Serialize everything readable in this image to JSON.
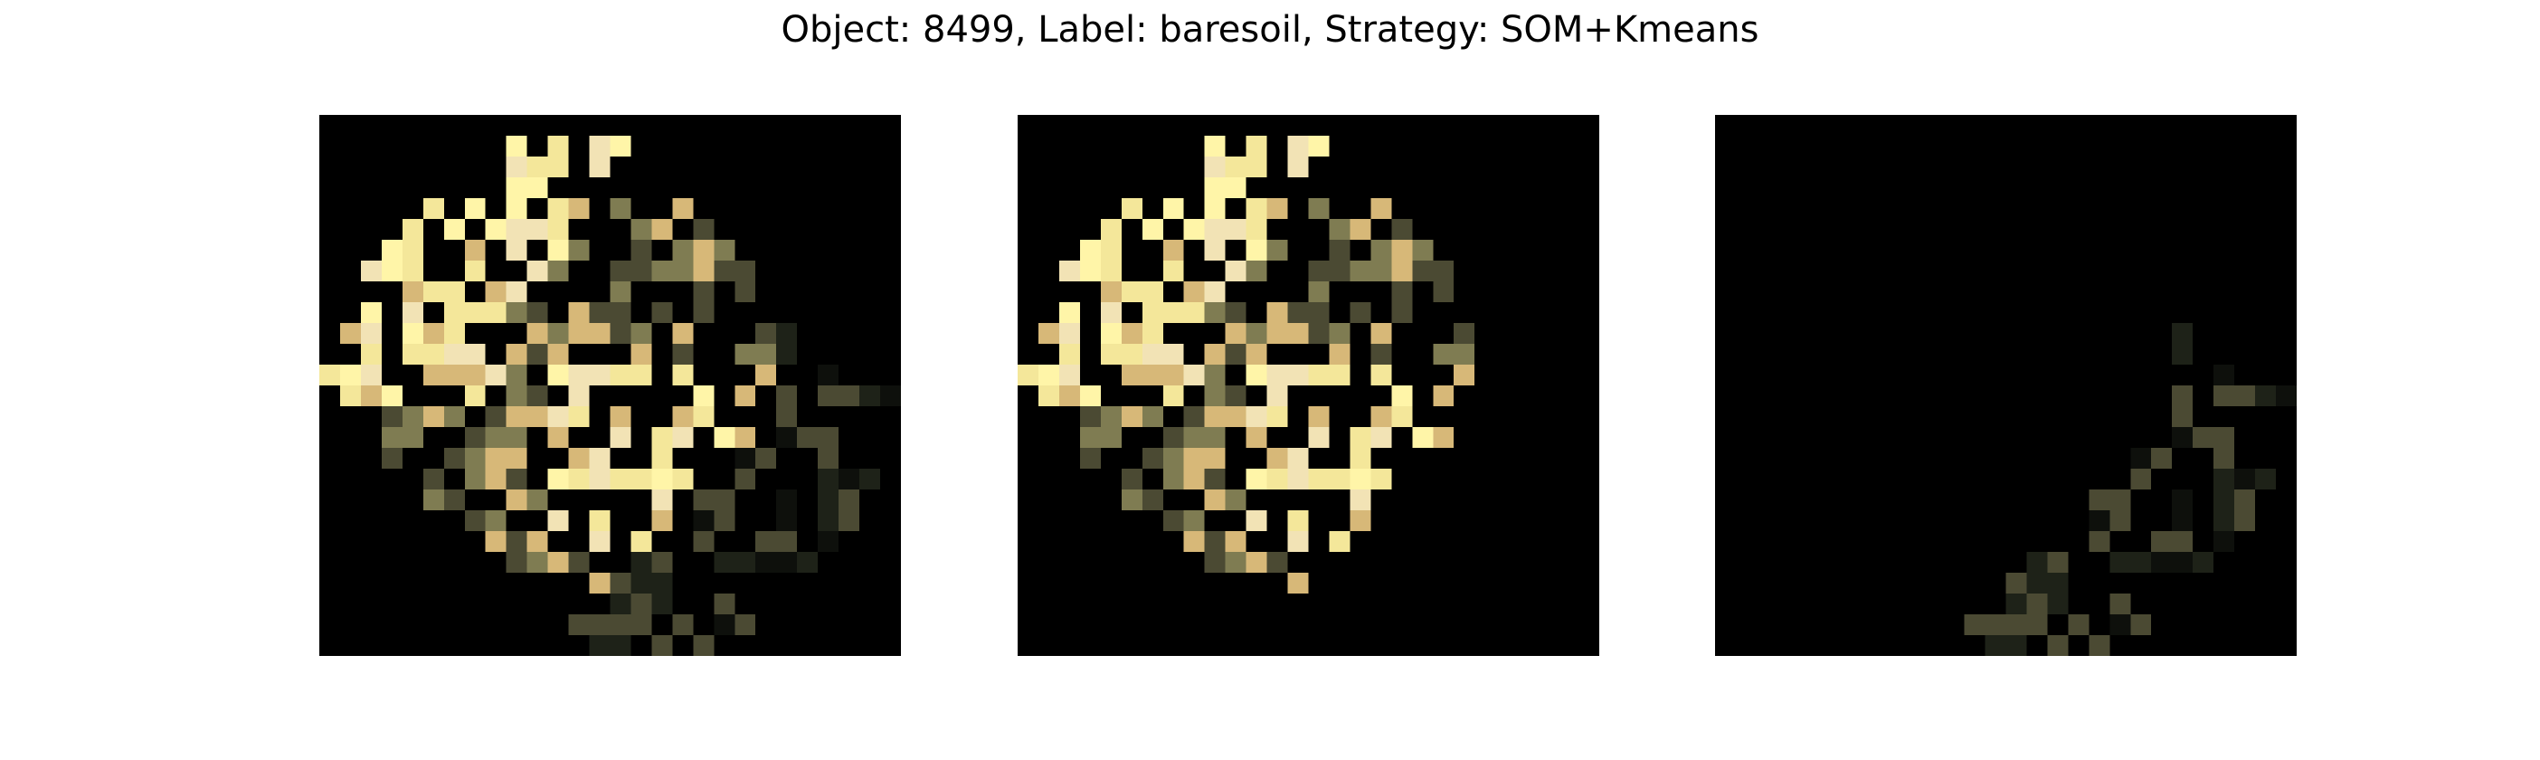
{
  "figure": {
    "title": "Object: 8499, Label: baresoil, Strategy: SOM+Kmeans"
  },
  "panels": [
    {
      "name": "full-object-image",
      "content": "full"
    },
    {
      "name": "cluster-bright-image",
      "content": "bright"
    },
    {
      "name": "cluster-dark-image",
      "content": "dark"
    }
  ],
  "colors": {
    "background": "#000000",
    "bright_yellow": "#fff5a8",
    "pale_yellow": "#f4e79a",
    "cream": "#f2e3b5",
    "tan": "#d7b878",
    "orange": "#e9a866",
    "rust": "#c98653",
    "olive": "#7f7c52",
    "dark_olive": "#4b4a33",
    "deep_green": "#1e2218",
    "near_black": "#0e100c"
  }
}
